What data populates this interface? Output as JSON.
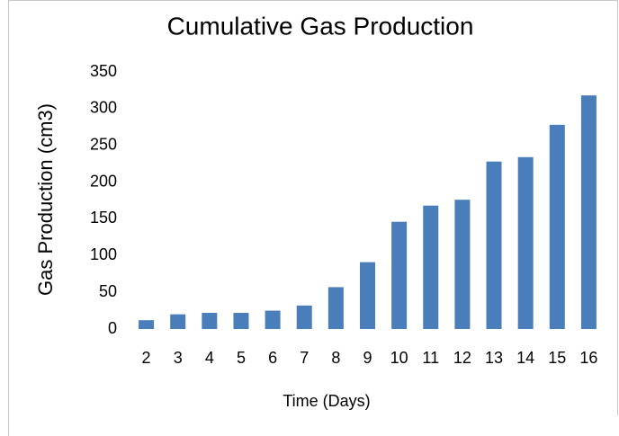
{
  "chart_data": {
    "type": "bar",
    "title": "Cumulative Gas Production",
    "x_label": "Time (Days)",
    "y_label": "Gas Production  (cm3)",
    "categories": [
      "2",
      "3",
      "4",
      "5",
      "6",
      "7",
      "8",
      "9",
      "10",
      "11",
      "12",
      "13",
      "14",
      "15",
      "16"
    ],
    "values": [
      12,
      20,
      22,
      22,
      25,
      32,
      57,
      91,
      146,
      168,
      176,
      228,
      234,
      278,
      318
    ],
    "color": "#4a7ebb",
    "ylim": [
      0,
      350
    ],
    "yticks": [
      0,
      50,
      100,
      150,
      200,
      250,
      300,
      350
    ],
    "grid": false
  }
}
